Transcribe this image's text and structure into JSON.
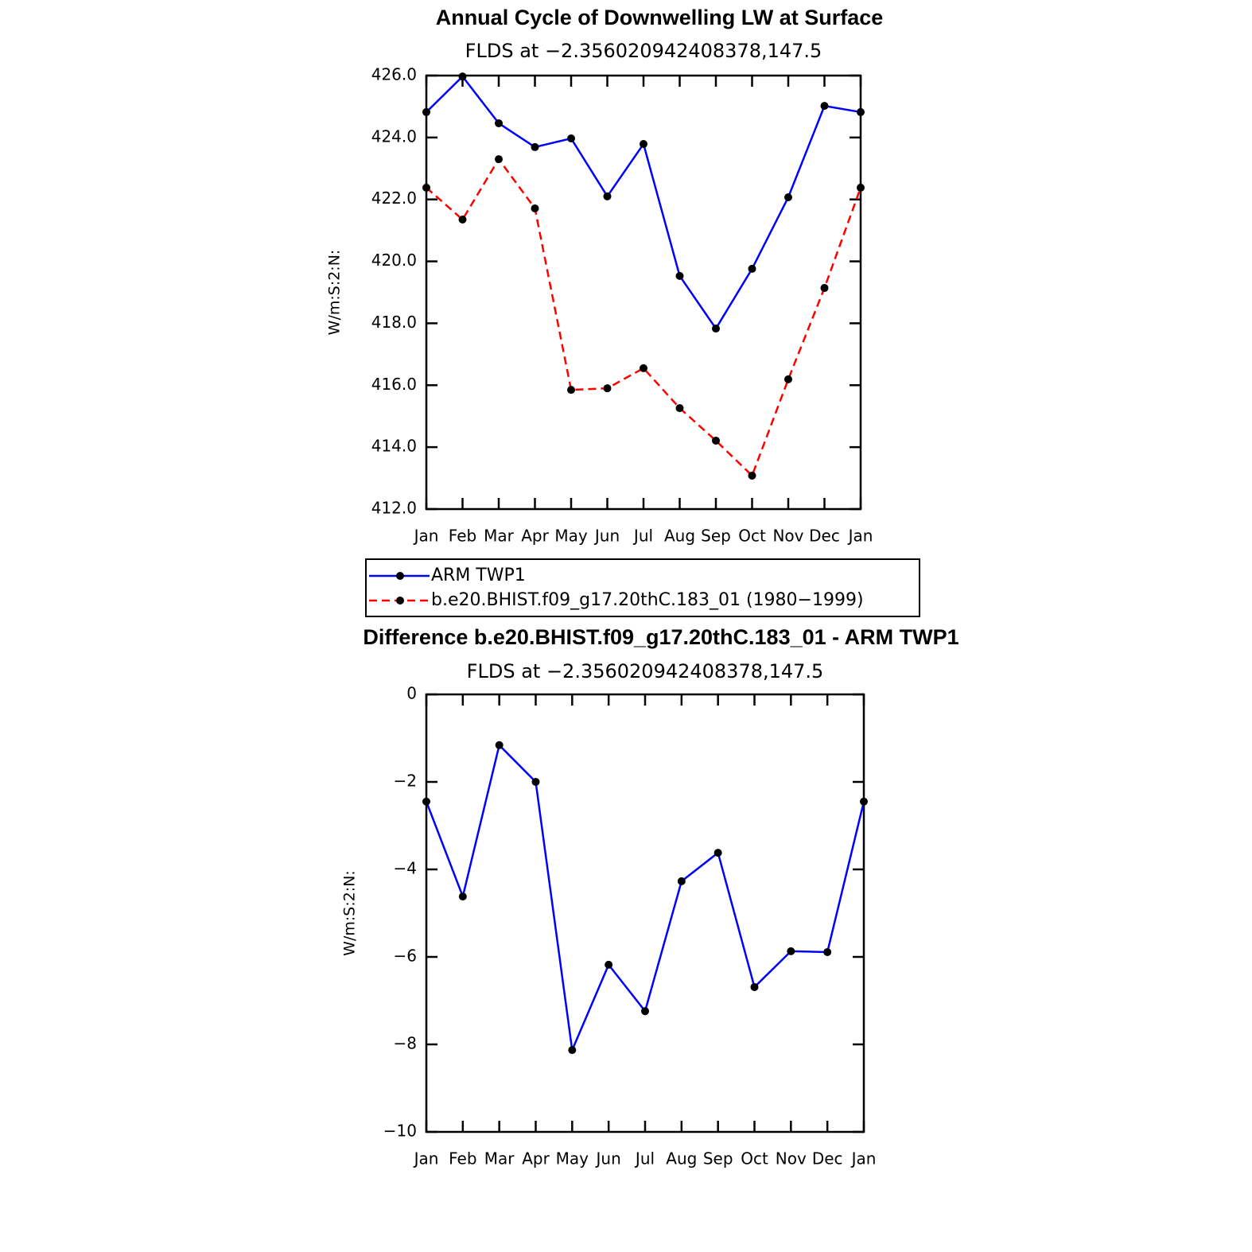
{
  "chart_data": [
    {
      "type": "line",
      "title": "Annual Cycle of Downwelling LW at Surface",
      "subtitle": "FLDS at −2.356020942408378,147.5",
      "y_label": "W/m:S:2:N:",
      "categories": [
        "Jan",
        "Feb",
        "Mar",
        "Apr",
        "May",
        "Jun",
        "Jul",
        "Aug",
        "Sep",
        "Oct",
        "Nov",
        "Dec",
        "Jan"
      ],
      "series": [
        {
          "name": "ARM TWP1",
          "color": "#0000ff",
          "dashed": false,
          "values": [
            424.82,
            425.97,
            424.46,
            423.69,
            423.97,
            422.1,
            423.79,
            419.53,
            417.83,
            419.76,
            422.07,
            425.02,
            424.82
          ]
        },
        {
          "name": "b.e20.BHIST.f09_g17.20thC.183_01 (1980−1999)",
          "color": "#ff0000",
          "dashed": true,
          "values": [
            422.38,
            421.35,
            423.3,
            421.71,
            415.85,
            415.9,
            416.55,
            415.26,
            414.21,
            413.08,
            416.19,
            419.14,
            422.38
          ]
        }
      ],
      "ylim": [
        412,
        426
      ],
      "yticks": [
        {
          "value": 412,
          "label": "412.0"
        },
        {
          "value": 414,
          "label": "414.0"
        },
        {
          "value": 416,
          "label": "416.0"
        },
        {
          "value": 418,
          "label": "418.0"
        },
        {
          "value": 420,
          "label": "420.0"
        },
        {
          "value": 422,
          "label": "422.0"
        },
        {
          "value": 424,
          "label": "424.0"
        },
        {
          "value": 426,
          "label": "426.0"
        }
      ],
      "legend": "below"
    },
    {
      "type": "line",
      "title": "Difference b.e20.BHIST.f09_g17.20thC.183_01 - ARM TWP1",
      "subtitle": "FLDS at −2.356020942408378,147.5",
      "y_label": "W/m:S:2:N:",
      "categories": [
        "Jan",
        "Feb",
        "Mar",
        "Apr",
        "May",
        "Jun",
        "Jul",
        "Aug",
        "Sep",
        "Oct",
        "Nov",
        "Dec",
        "Jan"
      ],
      "values": [
        -2.45,
        -4.62,
        -1.16,
        -2.0,
        -8.13,
        -6.18,
        -7.24,
        -4.27,
        -3.62,
        -6.69,
        -5.87,
        -5.89,
        -2.45
      ],
      "color": "#0000ff",
      "ylim": [
        -10,
        0
      ],
      "yticks": [
        {
          "value": -10,
          "label": "−10"
        },
        {
          "value": -8,
          "label": "−8"
        },
        {
          "value": -6,
          "label": "−6"
        },
        {
          "value": -4,
          "label": "−4"
        },
        {
          "value": -2,
          "label": "−2"
        },
        0
      ]
    }
  ]
}
